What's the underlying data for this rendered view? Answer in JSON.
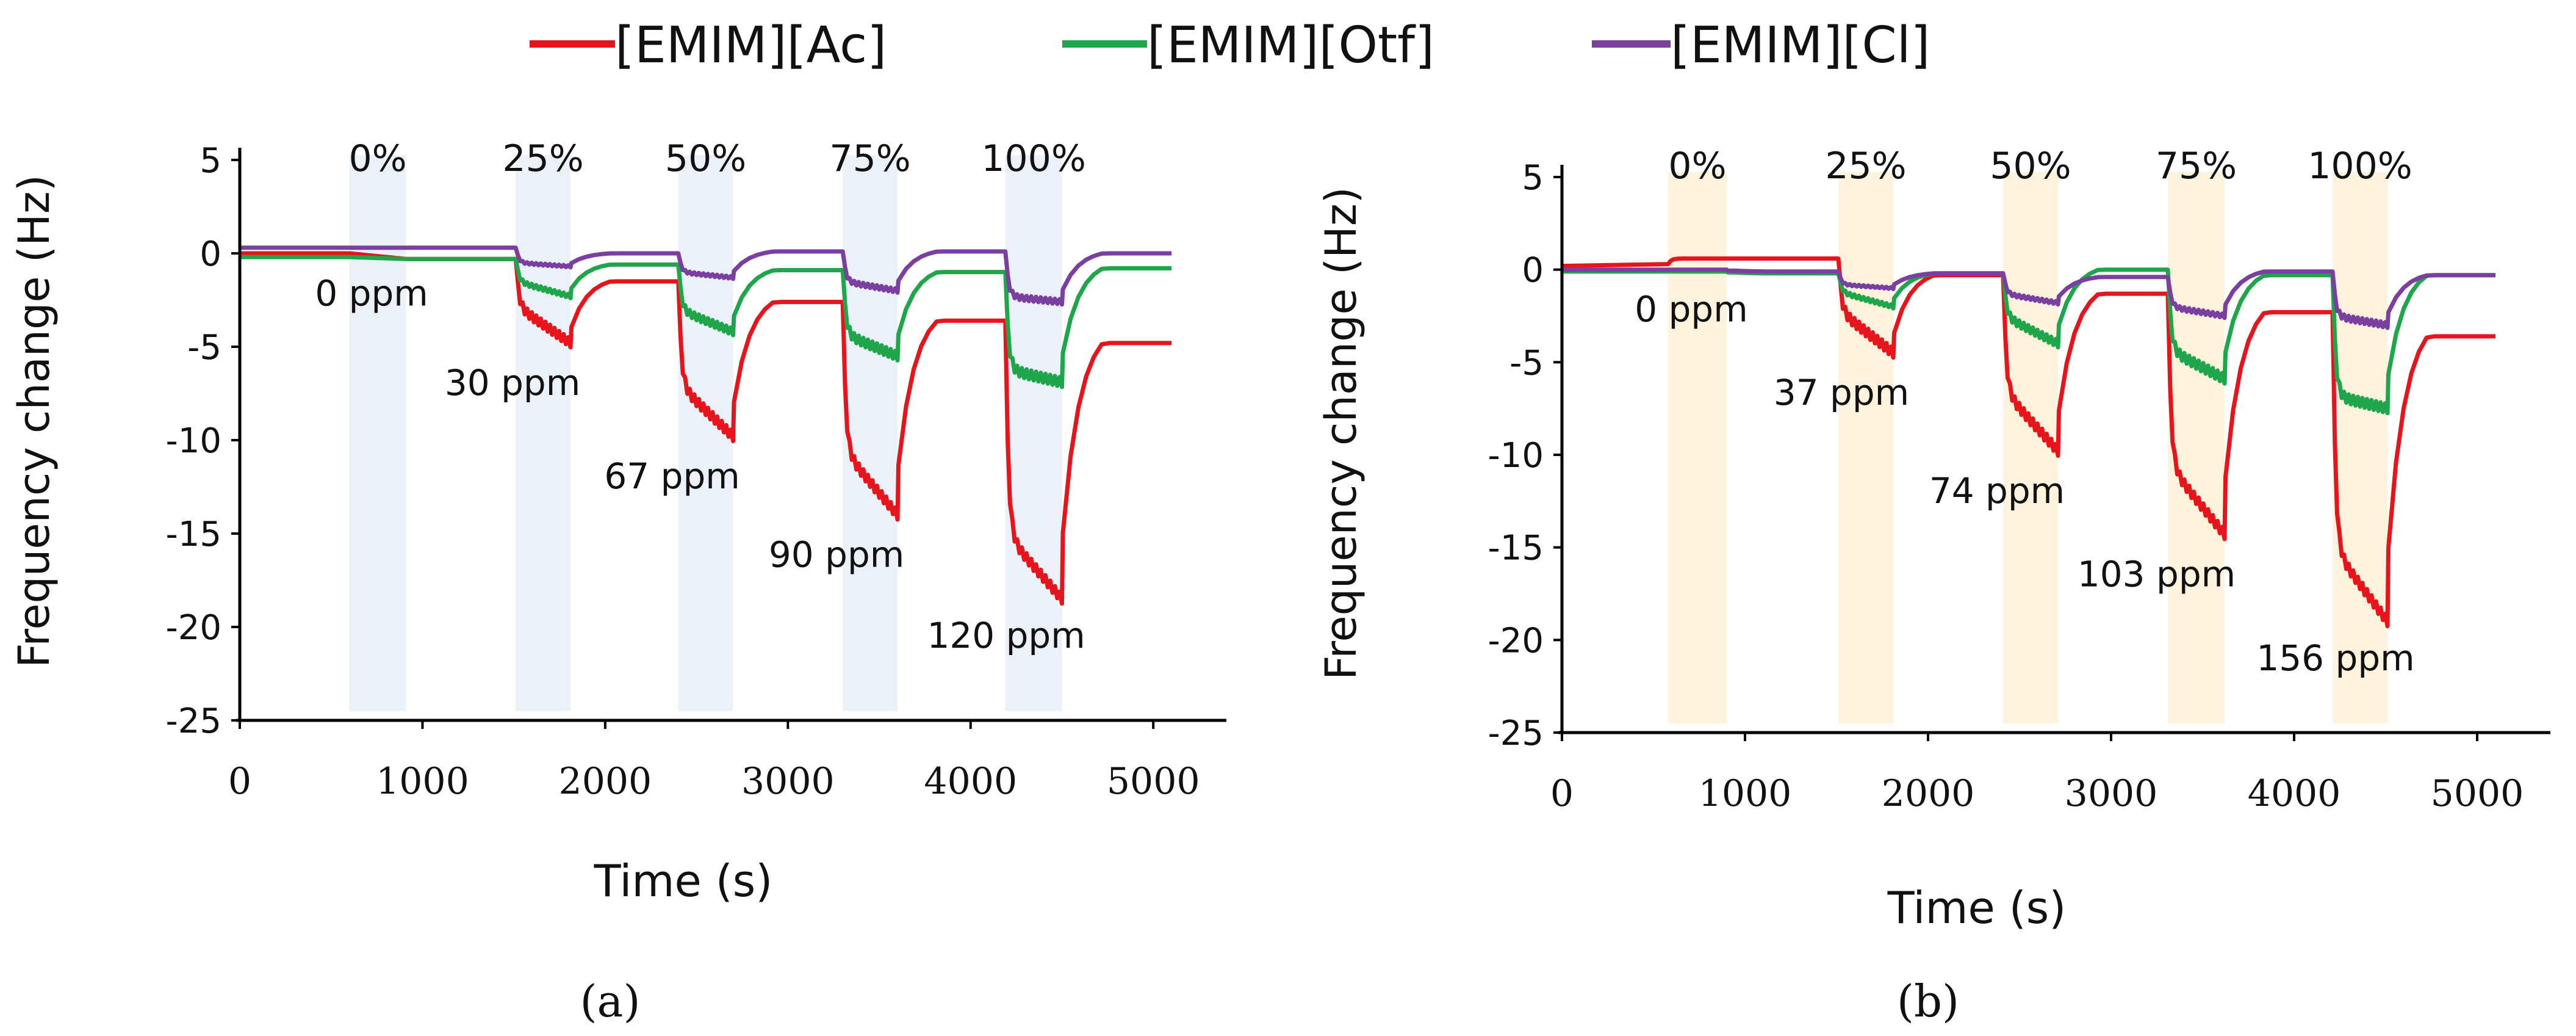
{
  "legend": {
    "entries": [
      {
        "name": "[EMIM][Ac]",
        "color": "#e8141b"
      },
      {
        "name": "[EMIM][Otf]",
        "color": "#1fa64a"
      },
      {
        "name": "[EMIM][Cl]",
        "color": "#7a3fa0"
      }
    ]
  },
  "chart_data": [
    {
      "panel": "(a)",
      "type": "line",
      "xlabel": "Time (s)",
      "ylabel": "Frequency change (Hz)",
      "xlim": [
        0,
        5400
      ],
      "ylim": [
        -25,
        5
      ],
      "xticks": [
        0,
        1000,
        2000,
        3000,
        4000,
        5000
      ],
      "yticks": [
        5,
        0,
        -5,
        -10,
        -15,
        -20,
        -25
      ],
      "shade_color": "#eaf1f8",
      "exposures": [
        {
          "label": "0%",
          "ppm": "0 ppm",
          "start": 600,
          "end": 910
        },
        {
          "label": "25%",
          "ppm": "30 ppm",
          "start": 1510,
          "end": 1810
        },
        {
          "label": "50%",
          "ppm": "67 ppm",
          "start": 2400,
          "end": 2700
        },
        {
          "label": "75%",
          "ppm": "90 ppm",
          "start": 3300,
          "end": 3600
        },
        {
          "label": "100%",
          "ppm": "120 ppm",
          "start": 4190,
          "end": 4500
        }
      ],
      "series": [
        {
          "name": "[EMIM][Ac]",
          "baseline": [
            0,
            -0.3,
            -1.5,
            -2.6,
            -3.6
          ],
          "recovery_end": -4.8,
          "drop_start": [
            0,
            -2.8,
            -7.0,
            -10.5,
            -15.0
          ],
          "drop_end": [
            -0.3,
            -4.8,
            -9.8,
            -14.0,
            -18.5
          ]
        },
        {
          "name": "[EMIM][Otf]",
          "baseline": [
            -0.2,
            -0.3,
            -0.6,
            -0.9,
            -1.0
          ],
          "recovery_end": -0.8,
          "drop_start": [
            -0.2,
            -1.5,
            -3.0,
            -4.3,
            -6.2
          ],
          "drop_end": [
            -0.3,
            -2.3,
            -4.2,
            -5.5,
            -6.9
          ]
        },
        {
          "name": "[EMIM][Cl]",
          "baseline": [
            0.3,
            0.3,
            0.0,
            0.1,
            0.1
          ],
          "recovery_end": 0.0,
          "drop_start": [
            0.3,
            -0.5,
            -1.0,
            -1.5,
            -2.3
          ],
          "drop_end": [
            0.3,
            -0.7,
            -1.3,
            -2.0,
            -2.6
          ]
        }
      ]
    },
    {
      "panel": "(b)",
      "type": "line",
      "xlabel": "Time (s)",
      "ylabel": "Frequency change (Hz)",
      "xlim": [
        0,
        5400
      ],
      "ylim": [
        -25,
        5
      ],
      "xticks": [
        0,
        1000,
        2000,
        3000,
        4000,
        5000
      ],
      "yticks": [
        5,
        0,
        -5,
        -10,
        -15,
        -20,
        -25
      ],
      "shade_color": "#fdf3dd",
      "exposures": [
        {
          "label": "0%",
          "ppm": "0 ppm",
          "start": 580,
          "end": 900
        },
        {
          "label": "25%",
          "ppm": "37 ppm",
          "start": 1510,
          "end": 1810
        },
        {
          "label": "50%",
          "ppm": "74 ppm",
          "start": 2410,
          "end": 2710
        },
        {
          "label": "75%",
          "ppm": "103 ppm",
          "start": 3310,
          "end": 3620
        },
        {
          "label": "100%",
          "ppm": "156 ppm",
          "start": 4210,
          "end": 4510
        }
      ],
      "series": [
        {
          "name": "[EMIM][Ac]",
          "baseline": [
            0.3,
            0.6,
            -0.3,
            -1.3,
            -2.3
          ],
          "recovery_end": -3.6,
          "drop_start": [
            0.6,
            -2.2,
            -6.5,
            -10.5,
            -15.0
          ],
          "drop_end": [
            0.6,
            -4.5,
            -9.8,
            -14.3,
            -19.0
          ]
        },
        {
          "name": "[EMIM][Otf]",
          "baseline": [
            -0.1,
            -0.2,
            -0.2,
            0.0,
            -0.3
          ],
          "recovery_end": -0.3,
          "drop_start": [
            -0.1,
            -1.2,
            -2.5,
            -4.3,
            -6.8
          ],
          "drop_end": [
            -0.1,
            -2.0,
            -4.0,
            -5.9,
            -7.5
          ]
        },
        {
          "name": "[EMIM][Cl]",
          "baseline": [
            0.0,
            -0.1,
            -0.2,
            -0.4,
            -0.1
          ],
          "recovery_end": -0.3,
          "drop_start": [
            0.0,
            -0.8,
            -1.3,
            -2.0,
            -2.5
          ],
          "drop_end": [
            0.0,
            -1.0,
            -1.8,
            -2.5,
            -3.0
          ]
        }
      ]
    }
  ]
}
